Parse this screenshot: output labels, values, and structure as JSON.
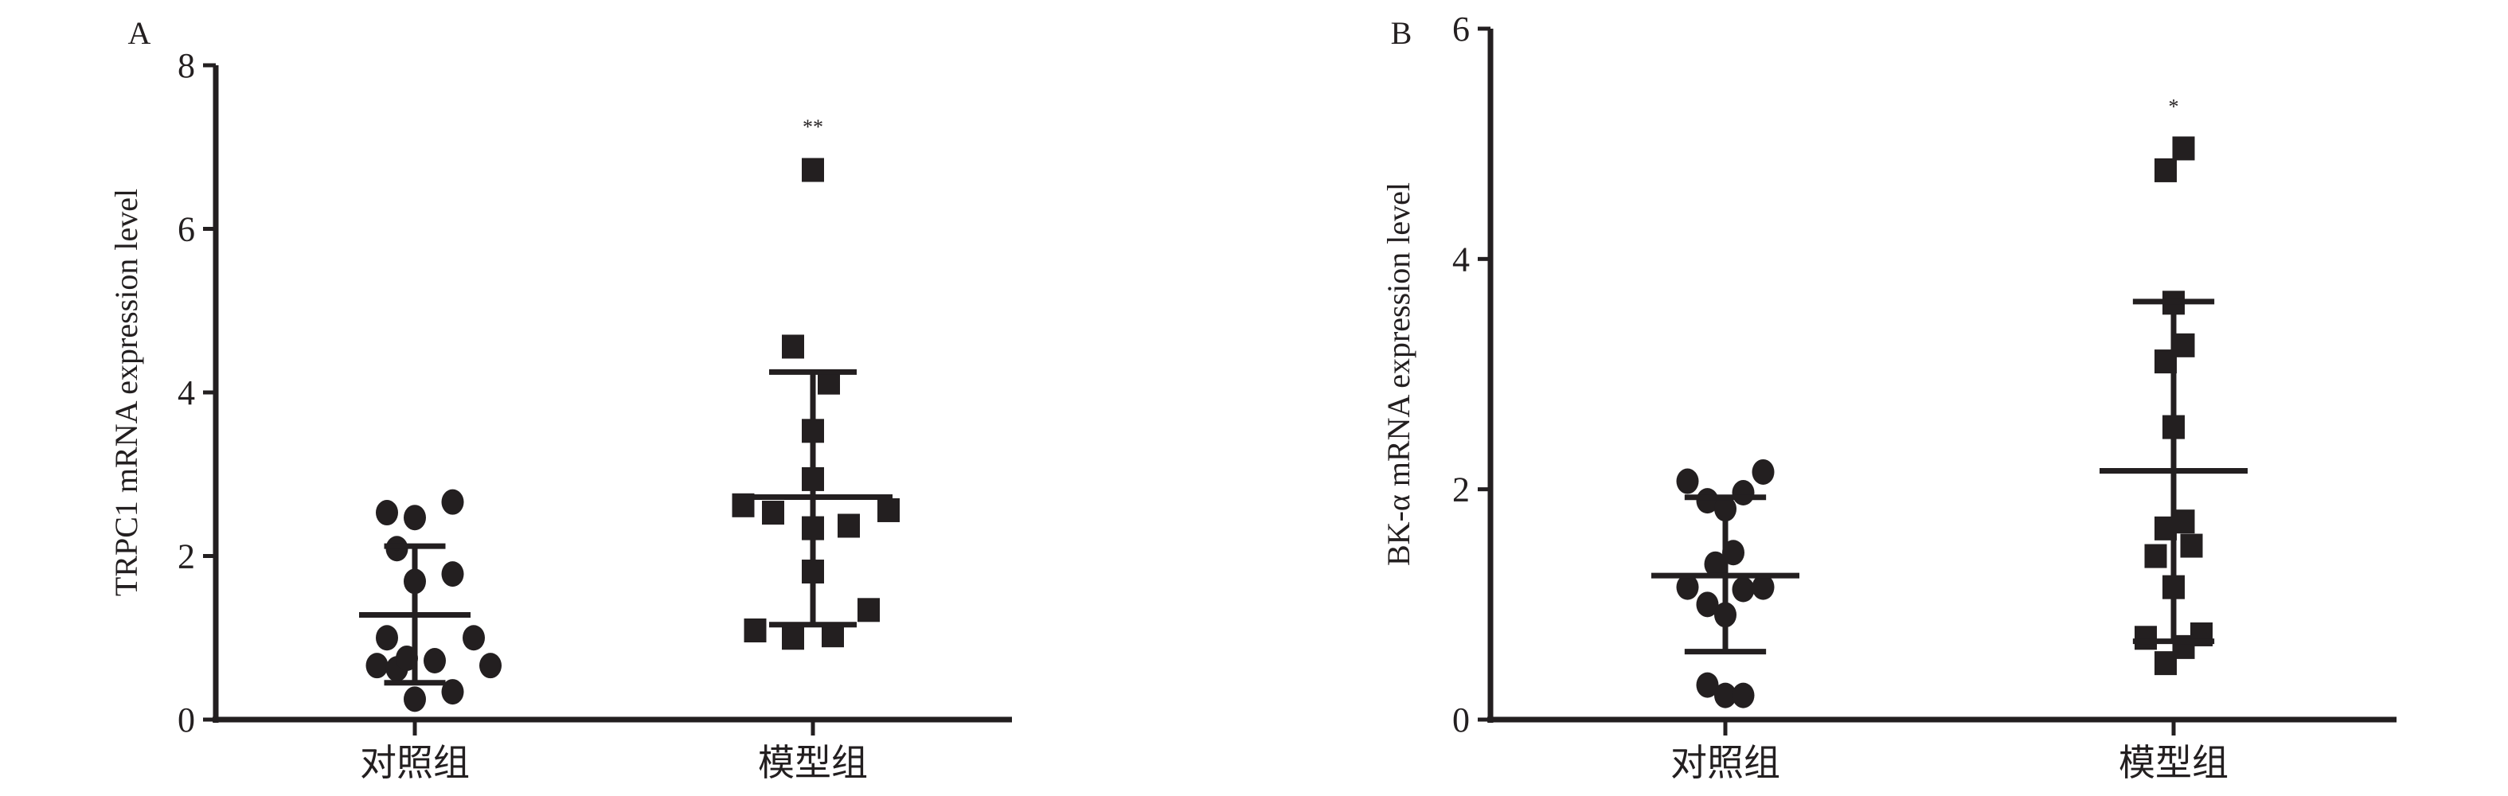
{
  "chart_data": [
    {
      "type": "scatter",
      "panel_label": "A",
      "ylabel": "TRPC1 mRNA expression level",
      "categories": [
        "对照组",
        "模型组"
      ],
      "ylim": [
        0,
        8
      ],
      "yticks": [
        0,
        2,
        4,
        6,
        8
      ],
      "grid": false,
      "series": [
        {
          "category": "对照组",
          "marker": "circle",
          "values": [
            2.53,
            2.47,
            2.66,
            2.09,
            1.69,
            1.78,
            1.0,
            1.0,
            0.66,
            0.62,
            0.75,
            0.72,
            0.66,
            0.34,
            0.25
          ],
          "mean": 1.28,
          "sd_upper": 2.12,
          "sd_lower": 0.45
        },
        {
          "category": "模型组",
          "marker": "square",
          "values": [
            6.72,
            4.56,
            4.12,
            3.53,
            2.94,
            2.62,
            2.53,
            2.34,
            2.37,
            2.56,
            1.81,
            1.34,
            1.09,
            1.0,
            1.03
          ],
          "mean": 2.72,
          "sd_upper": 4.25,
          "sd_lower": 1.16,
          "annotation": "**",
          "annotation_y": 7.3
        }
      ]
    },
    {
      "type": "scatter",
      "panel_label": "B",
      "ylabel": "BK-α mRNA expression level",
      "categories": [
        "对照组",
        "模型组"
      ],
      "ylim": [
        0,
        6
      ],
      "yticks": [
        0,
        2,
        4,
        6
      ],
      "grid": false,
      "series": [
        {
          "category": "对照组",
          "marker": "circle",
          "values": [
            2.07,
            1.9,
            1.83,
            1.97,
            2.15,
            1.45,
            1.35,
            1.15,
            1.13,
            1.15,
            1.0,
            0.91,
            0.3,
            0.21,
            0.21
          ],
          "mean": 1.25,
          "sd_upper": 1.93,
          "sd_lower": 0.59
        },
        {
          "category": "模型组",
          "marker": "square",
          "values": [
            4.96,
            4.77,
            3.62,
            3.25,
            3.11,
            2.54,
            1.66,
            1.72,
            1.42,
            1.51,
            1.15,
            0.71,
            0.74,
            0.63,
            0.49
          ],
          "mean": 2.16,
          "sd_upper": 3.63,
          "sd_lower": 0.68,
          "annotation": "*",
          "annotation_y": 5.36
        }
      ]
    }
  ],
  "colors": {
    "ink": "#231f20",
    "background": "#ffffff"
  }
}
